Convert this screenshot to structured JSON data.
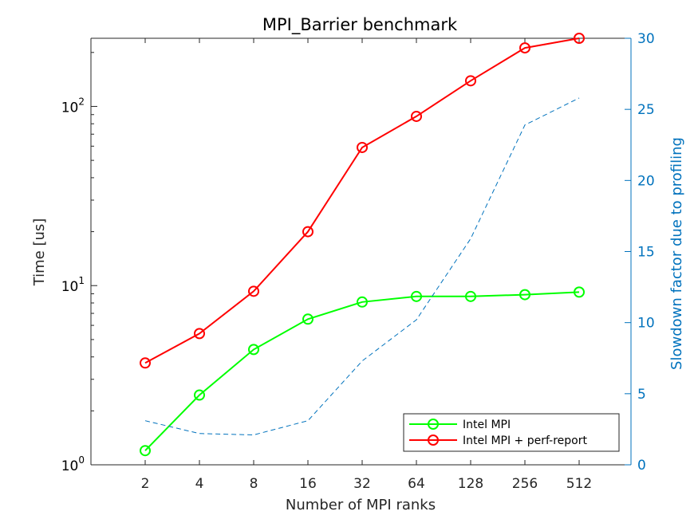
{
  "chart_data": {
    "type": "line",
    "title": "MPI_Barrier benchmark",
    "xlabel": "Number of MPI ranks",
    "ylabel_left": "Time [us]",
    "ylabel_right": "Slowdown factor due to profiling",
    "x_categories": [
      "2",
      "4",
      "8",
      "16",
      "32",
      "64",
      "128",
      "256",
      "512"
    ],
    "y_left_scale": "log",
    "y_left_lim": [
      1,
      240
    ],
    "y_left_ticks": [
      {
        "base": "10",
        "exp": "0"
      },
      {
        "base": "10",
        "exp": "1"
      },
      {
        "base": "10",
        "exp": "2"
      }
    ],
    "y_right_lim": [
      0,
      30
    ],
    "y_right_ticks": [
      "0",
      "5",
      "10",
      "15",
      "20",
      "25",
      "30"
    ],
    "legend_position": "bottom-right",
    "grid": false,
    "series": [
      {
        "name": "Intel MPI",
        "axis": "left",
        "color": "#00ff00",
        "marker": "circle",
        "values": [
          1.2,
          2.45,
          4.4,
          6.5,
          8.1,
          8.7,
          8.7,
          8.9,
          9.2
        ]
      },
      {
        "name": "Intel MPI + perf-report",
        "axis": "left",
        "color": "#ff0000",
        "marker": "circle",
        "values": [
          3.7,
          5.4,
          9.3,
          20,
          59,
          88,
          139,
          212,
          240
        ]
      },
      {
        "axis": "right",
        "color": "#0072bd",
        "style": "dashed",
        "values": [
          3.1,
          2.2,
          2.1,
          3.1,
          7.3,
          10.2,
          15.9,
          23.9,
          25.8
        ]
      }
    ]
  }
}
